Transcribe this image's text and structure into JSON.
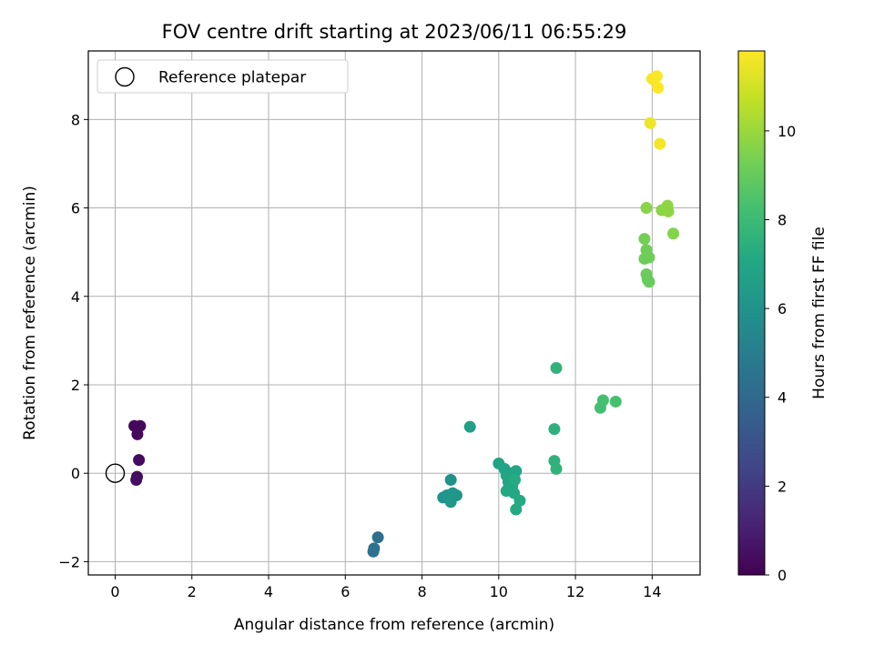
{
  "chart_data": {
    "type": "scatter",
    "title": "FOV centre drift starting at 2023/06/11 06:55:29",
    "xlabel": "Angular distance from reference (arcmin)",
    "ylabel": "Rotation from reference (arcmin)",
    "xlim": [
      -0.7,
      15.25
    ],
    "ylim": [
      -2.3,
      9.55
    ],
    "xticks": [
      0,
      2,
      4,
      6,
      8,
      10,
      12,
      14
    ],
    "yticks": [
      -2,
      0,
      2,
      4,
      6,
      8
    ],
    "grid": true,
    "legend": {
      "location": "upper-left",
      "entries": [
        "Reference platepar"
      ]
    },
    "reference_point": {
      "x": 0,
      "y": 0,
      "marker": "open-circle",
      "color": "#000000"
    },
    "colorbar": {
      "label": "Hours from first FF file",
      "range": [
        0,
        11.8
      ],
      "ticks": [
        0,
        2,
        4,
        6,
        8,
        10
      ],
      "colormap": "viridis"
    },
    "points": [
      {
        "x": 0.5,
        "y": 1.07,
        "hours": 0.2
      },
      {
        "x": 0.65,
        "y": 1.07,
        "hours": 0.25
      },
      {
        "x": 0.58,
        "y": 0.88,
        "hours": 0.3
      },
      {
        "x": 0.62,
        "y": 0.3,
        "hours": 0.35
      },
      {
        "x": 0.57,
        "y": -0.08,
        "hours": 0.4
      },
      {
        "x": 0.55,
        "y": -0.15,
        "hours": 0.45
      },
      {
        "x": 6.85,
        "y": -1.45,
        "hours": 4.3
      },
      {
        "x": 6.75,
        "y": -1.7,
        "hours": 4.4
      },
      {
        "x": 6.73,
        "y": -1.77,
        "hours": 4.45
      },
      {
        "x": 8.75,
        "y": -0.15,
        "hours": 5.9
      },
      {
        "x": 8.55,
        "y": -0.55,
        "hours": 6.0
      },
      {
        "x": 8.65,
        "y": -0.5,
        "hours": 6.05
      },
      {
        "x": 8.8,
        "y": -0.45,
        "hours": 6.1
      },
      {
        "x": 8.9,
        "y": -0.5,
        "hours": 6.15
      },
      {
        "x": 8.7,
        "y": -0.55,
        "hours": 6.2
      },
      {
        "x": 8.75,
        "y": -0.65,
        "hours": 6.25
      },
      {
        "x": 9.25,
        "y": 1.05,
        "hours": 6.6
      },
      {
        "x": 10.0,
        "y": 0.22,
        "hours": 6.8
      },
      {
        "x": 10.15,
        "y": 0.1,
        "hours": 6.85
      },
      {
        "x": 10.2,
        "y": -0.05,
        "hours": 6.9
      },
      {
        "x": 10.3,
        "y": 0.0,
        "hours": 6.95
      },
      {
        "x": 10.4,
        "y": -0.1,
        "hours": 7.0
      },
      {
        "x": 10.45,
        "y": 0.05,
        "hours": 7.0
      },
      {
        "x": 10.25,
        "y": -0.2,
        "hours": 7.05
      },
      {
        "x": 10.35,
        "y": -0.3,
        "hours": 7.05
      },
      {
        "x": 10.2,
        "y": -0.4,
        "hours": 7.1
      },
      {
        "x": 10.4,
        "y": -0.45,
        "hours": 7.1
      },
      {
        "x": 10.55,
        "y": -0.62,
        "hours": 7.15
      },
      {
        "x": 10.45,
        "y": -0.82,
        "hours": 7.15
      },
      {
        "x": 10.42,
        "y": -0.15,
        "hours": 7.2
      },
      {
        "x": 11.45,
        "y": 1.0,
        "hours": 7.5
      },
      {
        "x": 11.5,
        "y": 2.38,
        "hours": 7.6
      },
      {
        "x": 11.45,
        "y": 0.28,
        "hours": 7.55
      },
      {
        "x": 11.5,
        "y": 0.1,
        "hours": 7.6
      },
      {
        "x": 12.65,
        "y": 1.48,
        "hours": 8.2
      },
      {
        "x": 12.72,
        "y": 1.65,
        "hours": 8.25
      },
      {
        "x": 13.05,
        "y": 1.62,
        "hours": 8.3
      },
      {
        "x": 13.85,
        "y": 6.0,
        "hours": 9.7
      },
      {
        "x": 13.8,
        "y": 5.3,
        "hours": 9.3
      },
      {
        "x": 13.85,
        "y": 5.05,
        "hours": 9.2
      },
      {
        "x": 13.8,
        "y": 4.85,
        "hours": 9.15
      },
      {
        "x": 13.92,
        "y": 4.88,
        "hours": 9.2
      },
      {
        "x": 13.85,
        "y": 4.5,
        "hours": 9.1
      },
      {
        "x": 13.88,
        "y": 4.38,
        "hours": 9.05
      },
      {
        "x": 13.92,
        "y": 4.33,
        "hours": 9.05
      },
      {
        "x": 14.25,
        "y": 5.95,
        "hours": 9.75
      },
      {
        "x": 14.4,
        "y": 6.05,
        "hours": 9.8
      },
      {
        "x": 14.42,
        "y": 5.92,
        "hours": 9.8
      },
      {
        "x": 14.55,
        "y": 5.42,
        "hours": 9.6
      },
      {
        "x": 13.95,
        "y": 7.92,
        "hours": 11.5
      },
      {
        "x": 14.2,
        "y": 7.45,
        "hours": 11.6
      },
      {
        "x": 14.0,
        "y": 8.92,
        "hours": 11.7
      },
      {
        "x": 14.12,
        "y": 8.98,
        "hours": 11.75
      },
      {
        "x": 14.15,
        "y": 8.72,
        "hours": 11.8
      }
    ]
  }
}
